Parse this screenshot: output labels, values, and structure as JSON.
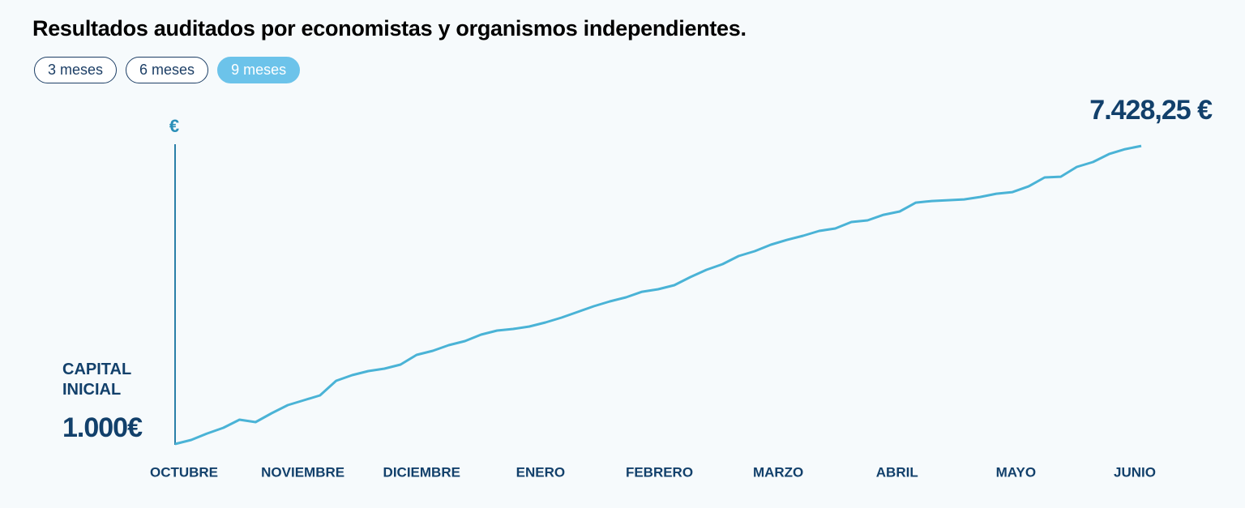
{
  "title": "Resultados auditados por economistas y organismos independientes.",
  "filters": {
    "options": [
      "3 meses",
      "6 meses",
      "9 meses"
    ],
    "selected": 2
  },
  "chart_data": {
    "type": "line",
    "y_label": "€",
    "start_label": "CAPITAL INICIAL",
    "month_labels": [
      "OCTUBRE",
      "NOVIEMBRE",
      "DICIEMBRE",
      "ENERO",
      "FEBRERO",
      "MARZO",
      "ABRIL",
      "MAYO",
      "JUNIO"
    ],
    "values": [
      1000,
      1087,
      1227,
      1349,
      1524,
      1472,
      1664,
      1839,
      1943,
      2048,
      2363,
      2485,
      2572,
      2625,
      2712,
      2922,
      3009,
      3131,
      3219,
      3358,
      3446,
      3481,
      3533,
      3621,
      3725,
      3848,
      3970,
      4075,
      4162,
      4284,
      4337,
      4424,
      4599,
      4756,
      4879,
      5053,
      5158,
      5298,
      5402,
      5490,
      5595,
      5647,
      5787,
      5822,
      5944,
      6014,
      6206,
      6241,
      6258,
      6276,
      6328,
      6398,
      6433,
      6555,
      6748,
      6765,
      6975,
      7080,
      7254,
      7359,
      7428.25
    ],
    "value_labels": [
      "1.000€",
      null,
      null,
      null,
      null,
      null,
      null,
      null,
      null,
      null,
      null,
      null,
      null,
      null,
      null,
      null,
      null,
      null,
      null,
      null,
      null,
      null,
      null,
      null,
      null,
      null,
      null,
      null,
      null,
      null,
      null,
      null,
      null,
      null,
      null,
      null,
      null,
      null,
      null,
      null,
      null,
      null,
      null,
      null,
      null,
      null,
      null,
      null,
      null,
      null,
      null,
      null,
      null,
      null,
      null,
      null,
      null,
      null,
      null,
      null,
      "7.428,25 €"
    ],
    "color": "#4ab3d6",
    "ylim": [
      1000,
      7500
    ]
  }
}
